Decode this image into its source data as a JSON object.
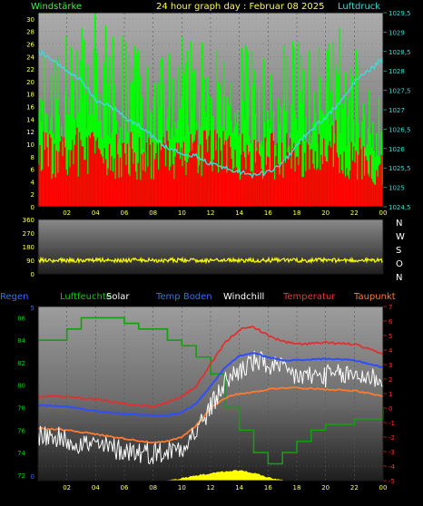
{
  "header": {
    "left_label": "Windstärke",
    "title": "24 hour graph day : Februar 08 2025",
    "right_label": "Luftdruck"
  },
  "wind_panel": {
    "y_ticks": [
      "0",
      "2",
      "4",
      "6",
      "8",
      "10",
      "12",
      "14",
      "16",
      "18",
      "20",
      "22",
      "24",
      "26",
      "28",
      "30"
    ],
    "pressure_ticks": [
      "1024,5",
      "1025",
      "1025,5",
      "1026",
      "1026,5",
      "1027",
      "1027,5",
      "1028",
      "1028,5",
      "1029",
      "1029,5"
    ],
    "x_ticks": [
      "02",
      "04",
      "06",
      "08",
      "10",
      "12",
      "14",
      "16",
      "18",
      "20",
      "22",
      "00"
    ]
  },
  "direction_panel": {
    "y_ticks": [
      "0",
      "90",
      "180",
      "270",
      "360"
    ],
    "compass": [
      "N",
      "W",
      "S",
      "O",
      "N"
    ],
    "x_ticks": [
      "02",
      "04",
      "06",
      "08",
      "10",
      "12",
      "14",
      "16",
      "18",
      "20",
      "22",
      "00"
    ]
  },
  "legend": [
    {
      "label": "Regen",
      "color": "#2f6fff"
    },
    {
      "label": "Luftfeuchte",
      "color": "#10c810"
    },
    {
      "label": "Solar",
      "color": "#ffffff"
    },
    {
      "label": "Temp Boden",
      "color": "#2f6fff"
    },
    {
      "label": "Windchill",
      "color": "#ffffff"
    },
    {
      "label": "Temperatur",
      "color": "#ff3030"
    },
    {
      "label": "Taupunkt",
      "color": "#ff7a30"
    }
  ],
  "temp_panel": {
    "humidity_ticks": [
      "72",
      "74",
      "76",
      "78",
      "80",
      "82",
      "84",
      "86"
    ],
    "temp_ticks": [
      "-5",
      "-4",
      "-3",
      "-2",
      "-1",
      "0",
      "1",
      "2",
      "3",
      "4",
      "5",
      "6",
      "7"
    ],
    "rain_ticks": [
      "0",
      "5"
    ],
    "x_ticks": [
      "02",
      "04",
      "06",
      "08",
      "10",
      "12",
      "14",
      "16",
      "18",
      "20",
      "22",
      "00"
    ]
  },
  "chart_data": [
    {
      "type": "bar",
      "title": "24 hour graph day : Februar 08 2025",
      "x_hours": [
        0,
        2,
        4,
        6,
        8,
        10,
        12,
        14,
        16,
        18,
        20,
        22,
        24
      ],
      "series": [
        {
          "name": "Windstärke",
          "unit": "gust",
          "color": "#00ff00",
          "hourly_max": [
            24,
            28,
            31,
            27,
            24,
            29,
            26,
            27,
            26,
            27,
            30,
            27,
            16
          ]
        },
        {
          "name": "Windstärke",
          "unit": "average",
          "color": "#ff0000",
          "hourly_max": [
            12,
            13,
            13,
            12,
            12,
            13,
            13,
            12,
            12,
            12,
            15,
            12,
            8
          ]
        }
      ],
      "pressure": {
        "name": "Luftdruck",
        "color": "#40d8d8",
        "hours": [
          0,
          1,
          2,
          3,
          4,
          5,
          6,
          7,
          8,
          9,
          10,
          11,
          12,
          13,
          14,
          15,
          16,
          17,
          18,
          19,
          20,
          21,
          22,
          23,
          24
        ],
        "values": [
          1028.5,
          1028.3,
          1028.0,
          1027.8,
          1027.2,
          1027.1,
          1026.8,
          1026.6,
          1026.3,
          1026.0,
          1025.9,
          1025.8,
          1025.6,
          1025.5,
          1025.4,
          1025.3,
          1025.4,
          1025.6,
          1026.1,
          1026.5,
          1026.8,
          1027.2,
          1027.7,
          1028.0,
          1028.3
        ]
      },
      "ylim": [
        0,
        31
      ],
      "pressure_ylim": [
        1024.5,
        1029.5
      ]
    },
    {
      "type": "line",
      "series": [
        {
          "name": "Windrichtung",
          "color": "#ffff00",
          "hours": [
            0,
            24
          ],
          "values": [
            90,
            90
          ]
        }
      ],
      "ylim": [
        0,
        360
      ]
    },
    {
      "type": "line",
      "series": [
        {
          "name": "Temperatur",
          "color": "#ff3030",
          "hours": [
            0,
            2,
            4,
            6,
            8,
            9,
            10,
            11,
            12,
            13,
            14,
            15,
            16,
            17,
            18,
            20,
            22,
            24
          ],
          "values": [
            0.8,
            0.8,
            0.6,
            0.3,
            0.1,
            0.4,
            0.8,
            1.5,
            3.0,
            4.5,
            5.4,
            5.6,
            5.0,
            4.6,
            4.4,
            4.5,
            4.4,
            3.7
          ]
        },
        {
          "name": "Temp Boden",
          "color": "#2f6fff",
          "hours": [
            0,
            2,
            4,
            6,
            8,
            9,
            10,
            11,
            12,
            13,
            14,
            15,
            16,
            17,
            18,
            20,
            22,
            24
          ],
          "values": [
            0.2,
            0.1,
            -0.2,
            -0.4,
            -0.5,
            -0.5,
            -0.3,
            0.3,
            1.5,
            2.8,
            3.6,
            3.8,
            3.5,
            3.3,
            3.3,
            3.4,
            3.3,
            2.8
          ]
        },
        {
          "name": "Windchill",
          "color": "#ffffff",
          "hours": [
            0,
            2,
            4,
            6,
            8,
            9,
            10,
            11,
            12,
            13,
            14,
            15,
            16,
            17,
            18,
            20,
            22,
            24
          ],
          "values": [
            -1.8,
            -2.2,
            -2.6,
            -2.9,
            -3.1,
            -3.0,
            -2.6,
            -1.6,
            0.0,
            1.8,
            2.6,
            3.2,
            3.0,
            2.6,
            2.2,
            2.2,
            2.3,
            2.0
          ]
        },
        {
          "name": "Taupunkt",
          "color": "#ff7a30",
          "hours": [
            0,
            2,
            4,
            6,
            8,
            9,
            10,
            11,
            12,
            13,
            14,
            15,
            16,
            17,
            18,
            20,
            22,
            24
          ],
          "values": [
            -1.4,
            -1.5,
            -1.8,
            -2.1,
            -2.4,
            -2.3,
            -2.0,
            -1.2,
            0.0,
            0.7,
            1.0,
            1.1,
            1.3,
            1.4,
            1.4,
            1.3,
            1.2,
            0.8
          ]
        },
        {
          "name": "Luftfeuchte",
          "color": "#10c810",
          "hours": [
            0,
            1,
            2,
            3,
            4,
            5,
            6,
            7,
            8,
            9,
            10,
            11,
            12,
            13,
            14,
            15,
            16,
            17,
            18,
            19,
            20,
            21,
            22,
            23,
            24
          ],
          "values": [
            84,
            84,
            85,
            86,
            86,
            86,
            85.5,
            85,
            85,
            84,
            83.5,
            82.5,
            81,
            78,
            76,
            74,
            73,
            74,
            75,
            76,
            76.5,
            76.5,
            77,
            77,
            78
          ]
        },
        {
          "name": "Solar",
          "color": "#ffff00",
          "hours": [
            9,
            10,
            11,
            12,
            13,
            14,
            15,
            16,
            17
          ],
          "values": [
            0,
            4,
            10,
            14,
            18,
            20,
            15,
            6,
            0
          ]
        }
      ],
      "humidity_ylim": [
        71.5,
        87
      ],
      "temp_ylim": [
        -5,
        7
      ]
    }
  ]
}
